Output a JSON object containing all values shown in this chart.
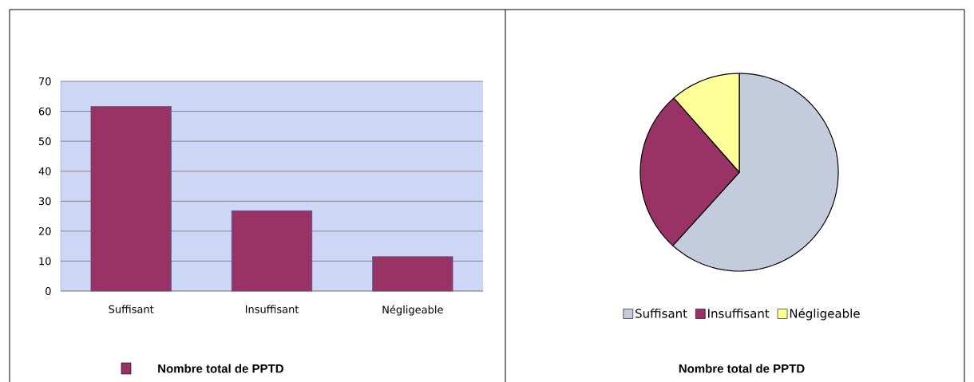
{
  "chart_data": [
    {
      "type": "bar",
      "categories": [
        "Suffisant",
        "Insuffisant",
        "Négligeable"
      ],
      "series": [
        {
          "name": "Nombre total de PPTD",
          "color": "#993366",
          "values": [
            61.6,
            26.8,
            11.5
          ]
        }
      ],
      "ylim": [
        0,
        70
      ],
      "yticks": [
        0,
        10,
        20,
        30,
        40,
        50,
        60,
        70
      ],
      "grid": "y",
      "legend": "bottom"
    },
    {
      "type": "pie",
      "title": "Nombre total de PPTD",
      "categories": [
        "Suffisant",
        "Insuffisant",
        "Négligeable"
      ],
      "values": [
        61.7,
        26.8,
        11.5
      ],
      "colors": [
        "#c3cbdd",
        "#993366",
        "#ffff99"
      ],
      "legend": "bottom"
    }
  ]
}
